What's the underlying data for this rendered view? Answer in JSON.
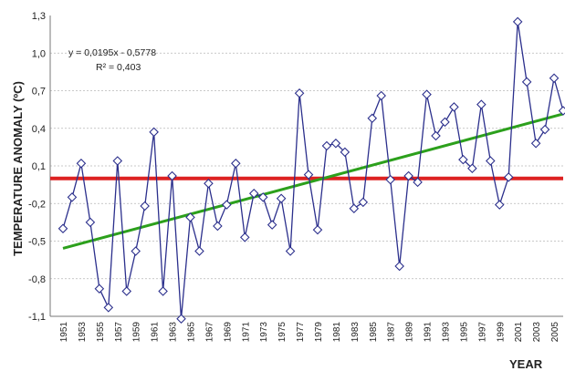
{
  "chart_data": {
    "type": "line",
    "ylabel": "TEMPERATURE ANOMALY (ºC)",
    "xlabel": "YEAR",
    "ylim": [
      -1.1,
      1.3
    ],
    "yticks": [
      "1,3",
      "1,0",
      "0,7",
      "0,4",
      "0,1",
      "-0,2",
      "-0,5",
      "-0,8",
      "-1,1"
    ],
    "ytick_values": [
      1.3,
      1.0,
      0.7,
      0.4,
      0.1,
      -0.2,
      -0.5,
      -0.8,
      -1.1
    ],
    "xticks": [
      "1951",
      "1953",
      "1955",
      "1957",
      "1959",
      "1961",
      "1963",
      "1965",
      "1967",
      "1969",
      "1971",
      "1973",
      "1975",
      "1977",
      "1979",
      "1981",
      "1983",
      "1985",
      "1987",
      "1989",
      "1991",
      "1993",
      "1995",
      "1997",
      "1999",
      "2001",
      "2003",
      "2005"
    ],
    "grid": true,
    "equation": "y = 0,0195x - 0,5778",
    "r_squared": "R² = 0,403",
    "series": [
      {
        "color": "#2b2f8c",
        "marker": "diamond",
        "x": [
          1951,
          1952,
          1953,
          1954,
          1955,
          1956,
          1957,
          1958,
          1959,
          1960,
          1961,
          1962,
          1963,
          1964,
          1965,
          1966,
          1967,
          1968,
          1969,
          1970,
          1971,
          1972,
          1973,
          1974,
          1975,
          1976,
          1977,
          1978,
          1979,
          1980,
          1981,
          1982,
          1983,
          1984,
          1985,
          1986,
          1987,
          1988,
          1989,
          1990,
          1991,
          1992,
          1993,
          1994,
          1995,
          1996,
          1997,
          1998,
          1999,
          2000,
          2001,
          2002,
          2003,
          2004,
          2005,
          2006
        ],
        "values": [
          -0.4,
          -0.15,
          0.12,
          -0.35,
          -0.88,
          -1.03,
          0.14,
          -0.9,
          -0.58,
          -0.22,
          0.37,
          -0.9,
          0.02,
          -1.12,
          -0.31,
          -0.58,
          -0.04,
          -0.38,
          -0.21,
          0.12,
          -0.47,
          -0.12,
          -0.15,
          -0.37,
          -0.16,
          -0.58,
          0.68,
          0.03,
          -0.41,
          0.26,
          0.28,
          0.21,
          -0.24,
          -0.19,
          0.48,
          0.66,
          -0.01,
          -0.7,
          0.02,
          -0.03,
          0.67,
          0.34,
          0.45,
          0.57,
          0.15,
          0.08,
          0.59,
          0.14,
          -0.21,
          0.01,
          1.25,
          0.77,
          0.28,
          0.39,
          0.8,
          0.54
        ]
      },
      {
        "color": "#2ca01c",
        "style": "trendline",
        "x": [
          1951,
          2006
        ],
        "values": [
          -0.558,
          0.515
        ]
      },
      {
        "color": "#dd2222",
        "style": "reference",
        "x": [
          1951,
          2006
        ],
        "values": [
          0.0,
          0.0
        ]
      }
    ]
  }
}
